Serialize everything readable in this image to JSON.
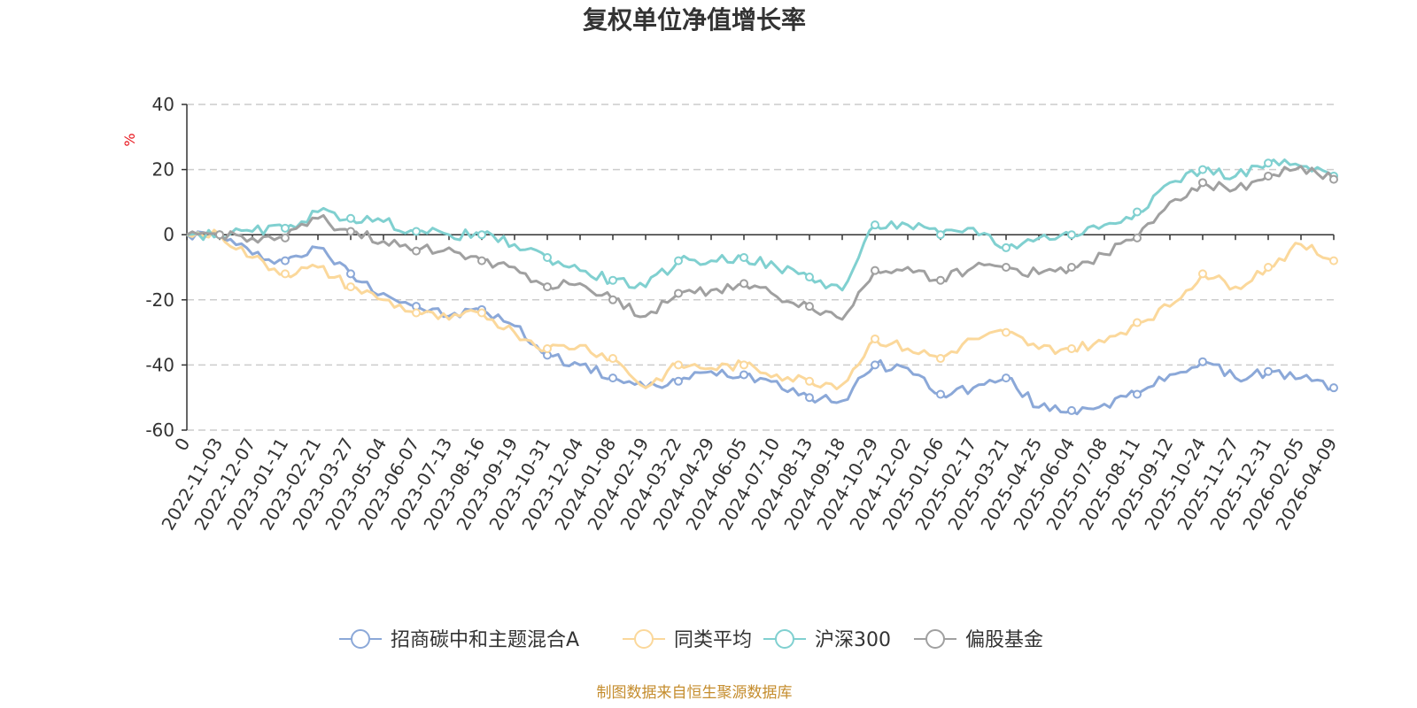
{
  "chart_data": {
    "type": "line",
    "title": "复权单位净值增长率",
    "ylabel": "%",
    "ylim": [
      -60,
      40
    ],
    "yticks": [
      "40",
      "20",
      "0",
      "-20",
      "-40",
      "-60"
    ],
    "grid": true,
    "legend_position": "bottom",
    "x_zero_label": "0",
    "categories": [
      "2022-11-03",
      "2022-12-07",
      "2023-01-11",
      "2023-02-21",
      "2023-03-27",
      "2023-05-04",
      "2023-06-07",
      "2023-07-13",
      "2023-08-16",
      "2023-09-19",
      "2023-10-31",
      "2023-12-04",
      "2024-01-08",
      "2024-02-19",
      "2024-03-22",
      "2024-04-29",
      "2024-06-05",
      "2024-07-10",
      "2024-08-13",
      "2024-09-18",
      "2024-10-29",
      "2024-12-02",
      "2025-01-06",
      "2025-02-17",
      "2025-03-21",
      "2025-04-25",
      "2025-06-04",
      "2025-07-08",
      "2025-08-11",
      "2025-09-12",
      "2025-10-24",
      "2025-11-27",
      "2025-12-31",
      "2026-02-05",
      "2026-04-09"
    ],
    "series": [
      {
        "name": "招商碳中和主题混合A",
        "color": "#8ba8d8",
        "values": [
          0,
          -6,
          -8,
          -4,
          -12,
          -18,
          -22,
          -25,
          -23,
          -28,
          -37,
          -40,
          -44,
          -47,
          -45,
          -42,
          -43,
          -45,
          -50,
          -51,
          -40,
          -41,
          -49,
          -47,
          -44,
          -53,
          -54,
          -52,
          -49,
          -43,
          -39,
          -44,
          -42,
          -44,
          -47
        ]
      },
      {
        "name": "同类平均",
        "color": "#fbd89b",
        "values": [
          0,
          -7,
          -12,
          -10,
          -16,
          -20,
          -24,
          -26,
          -24,
          -30,
          -35,
          -34,
          -38,
          -47,
          -40,
          -41,
          -40,
          -43,
          -45,
          -46,
          -32,
          -35,
          -38,
          -32,
          -30,
          -35,
          -35,
          -33,
          -27,
          -22,
          -12,
          -16,
          -10,
          -3,
          -8
        ]
      },
      {
        "name": "沪深300",
        "color": "#80d0d0",
        "values": [
          0,
          1,
          2,
          7,
          5,
          4,
          1,
          0,
          0,
          -3,
          -7,
          -11,
          -14,
          -16,
          -8,
          -8,
          -7,
          -10,
          -13,
          -17,
          3,
          3,
          0,
          2,
          -4,
          -1,
          0,
          3,
          7,
          16,
          20,
          18,
          22,
          21,
          18
        ]
      },
      {
        "name": "偏股基金",
        "color": "#a0a0a0",
        "values": [
          0,
          -1,
          -1,
          5,
          1,
          -2,
          -5,
          -4,
          -8,
          -10,
          -16,
          -15,
          -20,
          -25,
          -18,
          -17,
          -15,
          -19,
          -22,
          -26,
          -11,
          -10,
          -14,
          -10,
          -10,
          -12,
          -10,
          -6,
          -1,
          10,
          16,
          14,
          18,
          21,
          17
        ]
      }
    ]
  },
  "footer": {
    "source": "制图数据来自恒生聚源数据库"
  }
}
